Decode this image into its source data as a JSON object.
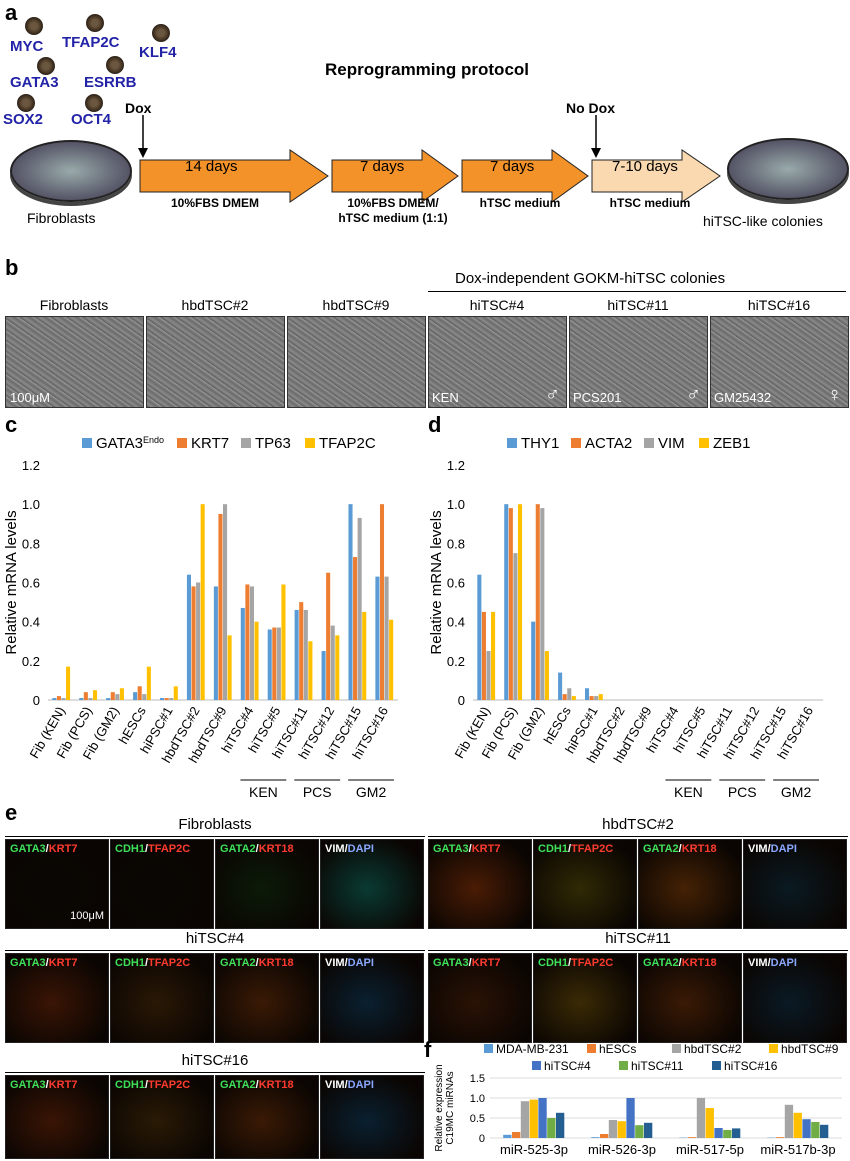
{
  "panel_a": {
    "label": "a",
    "factors": [
      "MYC",
      "TFAP2C",
      "KLF4",
      "GATA3",
      "ESRRB",
      "SOX2",
      "OCT4"
    ],
    "title": "Reprogramming protocol",
    "dox": "Dox",
    "no_dox": "No Dox",
    "start": "Fibroblasts",
    "end": "hiTSC-like colonies",
    "steps": [
      {
        "duration": "14 days",
        "medium": "10%FBS DMEM"
      },
      {
        "duration": "7 days",
        "medium": "10%FBS DMEM/\nhTSC medium (1:1)"
      },
      {
        "duration": "7 days",
        "medium": "hTSC medium"
      },
      {
        "duration": "7-10 days",
        "medium": "hTSC medium"
      }
    ]
  },
  "panel_b": {
    "label": "b",
    "group_title": "Dox-independent GOKM-hiTSC colonies",
    "scale": "100μM",
    "images": [
      {
        "title": "Fibroblasts",
        "tag": ""
      },
      {
        "title": "hbdTSC#2",
        "tag": ""
      },
      {
        "title": "hbdTSC#9",
        "tag": ""
      },
      {
        "title": "hiTSC#4",
        "tag": "KEN"
      },
      {
        "title": "hiTSC#11",
        "tag": "PCS201"
      },
      {
        "title": "hiTSC#16",
        "tag": "GM25432"
      }
    ]
  },
  "panel_e": {
    "label": "e",
    "scale": "100μM",
    "stains": [
      {
        "a": "GATA3",
        "b": "KRT7"
      },
      {
        "a": "CDH1",
        "b": "TFAP2C"
      },
      {
        "a": "GATA2",
        "b": "KRT18"
      },
      {
        "a": "VIM",
        "b": "DAPI"
      }
    ],
    "groups": [
      "Fibroblasts",
      "hbdTSC#2",
      "hiTSC#4",
      "hiTSC#11",
      "hiTSC#16"
    ]
  },
  "chart_data": [
    {
      "panel": "c",
      "type": "bar",
      "ylabel": "Relative mRNA levels",
      "ylim": [
        0,
        1.2
      ],
      "yticks": [
        "0",
        "0.2",
        "0.4",
        "0.6",
        "0.8",
        "1.0",
        "1.2"
      ],
      "categories": [
        "Fib (KEN)",
        "Fib (PCS)",
        "Fib (GM2)",
        "hESCs",
        "hiPSC#1",
        "hbdTSC#2",
        "hbdTSC#9",
        "hiTSC#4",
        "hiTSC#5",
        "hiTSC#11",
        "hiTSC#12",
        "hiTSC#15",
        "hiTSC#16"
      ],
      "groups": [
        {
          "name": "KEN",
          "from": 7,
          "to": 8
        },
        {
          "name": "PCS",
          "from": 9,
          "to": 10
        },
        {
          "name": "GM2",
          "from": 11,
          "to": 12
        }
      ],
      "legend_position": "top",
      "series": [
        {
          "name": "GATA3",
          "name_sup": "Endo",
          "color": "#5b9bd5",
          "values": [
            0.01,
            0.01,
            0.01,
            0.04,
            0.01,
            0.64,
            0.58,
            0.47,
            0.36,
            0.46,
            0.25,
            1.0,
            0.63
          ]
        },
        {
          "name": "KRT7",
          "color": "#ed7d31",
          "values": [
            0.02,
            0.04,
            0.04,
            0.07,
            0.01,
            0.58,
            0.95,
            0.59,
            0.37,
            0.5,
            0.65,
            0.73,
            1.0
          ]
        },
        {
          "name": "TP63",
          "color": "#a5a5a5",
          "values": [
            0.01,
            0.01,
            0.03,
            0.03,
            0.01,
            0.6,
            1.0,
            0.58,
            0.37,
            0.46,
            0.38,
            0.93,
            0.63
          ]
        },
        {
          "name": "TFAP2C",
          "color": "#ffc000",
          "values": [
            0.17,
            0.05,
            0.06,
            0.17,
            0.07,
            1.0,
            0.33,
            0.4,
            0.59,
            0.3,
            0.33,
            0.45,
            0.41
          ]
        }
      ]
    },
    {
      "panel": "d",
      "type": "bar",
      "ylabel": "Relative mRNA levels",
      "ylim": [
        0,
        1.2
      ],
      "yticks": [
        "0",
        "0.2",
        "0.4",
        "0.6",
        "0.8",
        "1.0",
        "1.2"
      ],
      "categories": [
        "Fib (KEN)",
        "Fib (PCS)",
        "Fib (GM2)",
        "hESCs",
        "hiPSC#1",
        "hbdTSC#2",
        "hbdTSC#9",
        "hiTSC#4",
        "hiTSC#5",
        "hiTSC#11",
        "hiTSC#12",
        "hiTSC#15",
        "hiTSC#16"
      ],
      "groups": [
        {
          "name": "KEN",
          "from": 7,
          "to": 8
        },
        {
          "name": "PCS",
          "from": 9,
          "to": 10
        },
        {
          "name": "GM2",
          "from": 11,
          "to": 12
        }
      ],
      "legend_position": "top",
      "series": [
        {
          "name": "THY1",
          "color": "#5b9bd5",
          "values": [
            0.64,
            1.0,
            0.4,
            0.14,
            0.06,
            0,
            0,
            0,
            0,
            0,
            0,
            0,
            0
          ]
        },
        {
          "name": "ACTA2",
          "color": "#ed7d31",
          "values": [
            0.45,
            0.98,
            1.0,
            0.03,
            0.02,
            0,
            0,
            0,
            0,
            0,
            0,
            0,
            0
          ]
        },
        {
          "name": "VIM",
          "color": "#a5a5a5",
          "values": [
            0.25,
            0.75,
            0.98,
            0.06,
            0.02,
            0,
            0,
            0,
            0,
            0,
            0,
            0,
            0
          ]
        },
        {
          "name": "ZEB1",
          "color": "#ffc000",
          "values": [
            0.45,
            1.0,
            0.25,
            0.02,
            0.03,
            0,
            0,
            0,
            0,
            0,
            0,
            0,
            0
          ]
        }
      ]
    },
    {
      "panel": "f",
      "type": "bar",
      "ylabel": "Relative expression\nC19MC miRNAs",
      "ylim": [
        0,
        1.5
      ],
      "yticks": [
        "0",
        "0.5",
        "1.0",
        "1.5"
      ],
      "categories": [
        "miR-525-3p",
        "miR-526-3p",
        "miR-517-5p",
        "miR-517b-3p"
      ],
      "legend_position": "top",
      "series": [
        {
          "name": "MDA-MB-231",
          "color": "#5b9bd5",
          "values": [
            0.08,
            0.02,
            0.01,
            0.01
          ]
        },
        {
          "name": "hESCs",
          "color": "#ed7d31",
          "values": [
            0.15,
            0.1,
            0.02,
            0.02
          ]
        },
        {
          "name": "hbdTSC#2",
          "color": "#a5a5a5",
          "values": [
            0.92,
            0.45,
            1.0,
            0.83
          ]
        },
        {
          "name": "hbdTSC#9",
          "color": "#ffc000",
          "values": [
            0.96,
            0.42,
            0.75,
            0.63
          ]
        },
        {
          "name": "hiTSC#4",
          "color": "#4472c4",
          "values": [
            1.0,
            1.0,
            0.25,
            0.47
          ]
        },
        {
          "name": "hiTSC#11",
          "color": "#70ad47",
          "values": [
            0.5,
            0.32,
            0.2,
            0.4
          ]
        },
        {
          "name": "hiTSC#16",
          "color": "#255e91",
          "values": [
            0.63,
            0.38,
            0.24,
            0.33
          ]
        }
      ]
    }
  ]
}
